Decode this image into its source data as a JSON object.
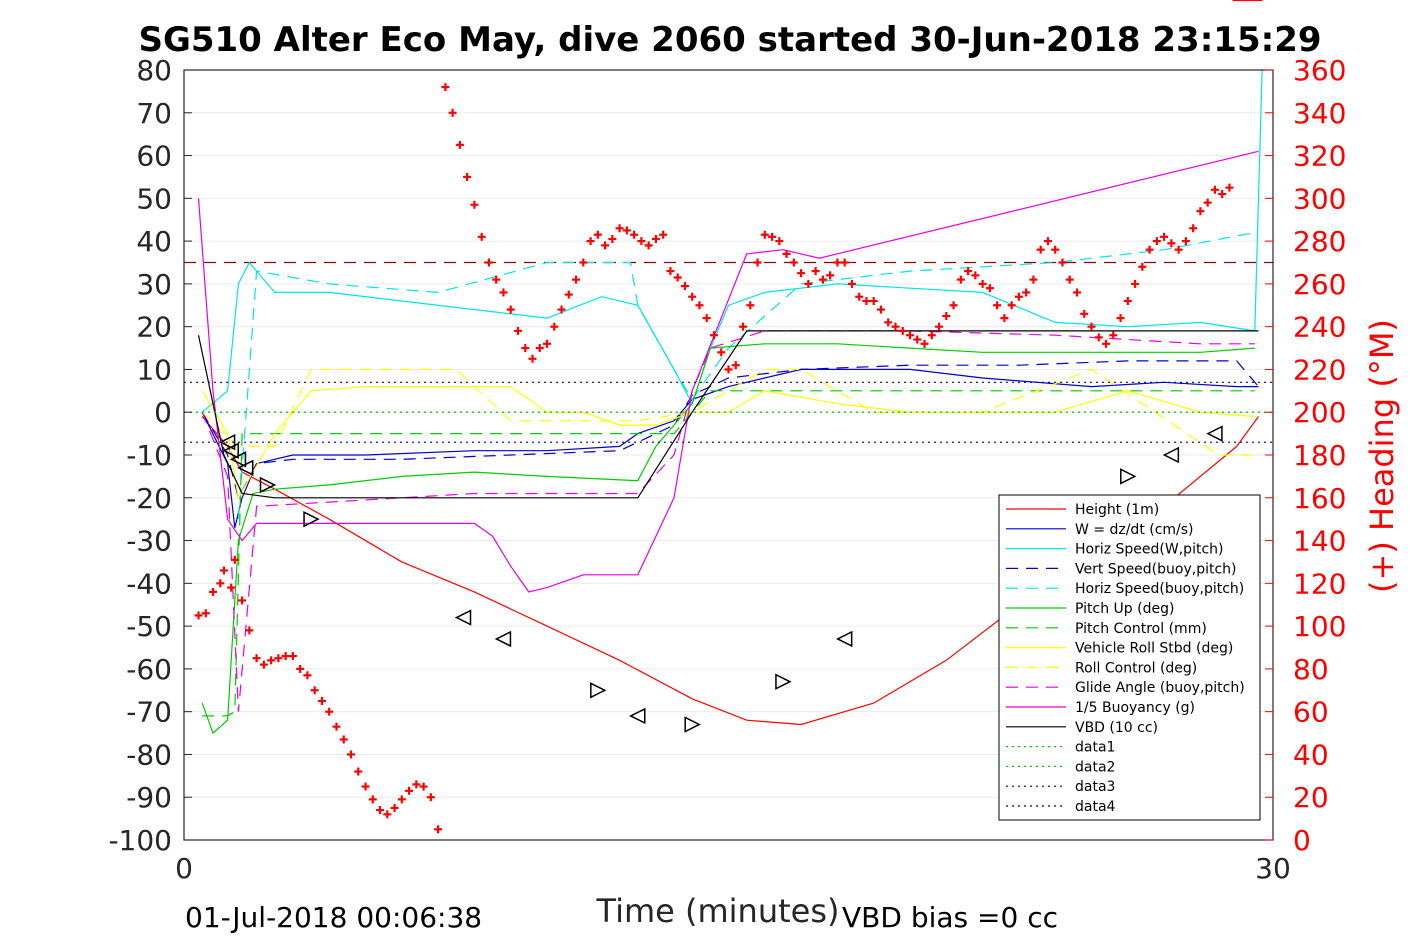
{
  "chart_data": {
    "type": "line",
    "title": "SG510 Alter Eco May, dive 2060 started 30-Jun-2018 23:15:29",
    "xlabel": "Time (minutes)",
    "ylabel": "",
    "y2label": "(+) Heading (°M)",
    "xlim": [
      0,
      30
    ],
    "ylim": [
      -100,
      80
    ],
    "y2lim": [
      0,
      360
    ],
    "xticks": [
      "0",
      "30"
    ],
    "yticks": [
      "80",
      "70",
      "60",
      "50",
      "40",
      "30",
      "20",
      "10",
      "0",
      "-10",
      "-20",
      "-30",
      "-40",
      "-50",
      "-60",
      "-70",
      "-80",
      "-90",
      "-100"
    ],
    "y2ticks": [
      "360",
      "340",
      "320",
      "300",
      "280",
      "260",
      "240",
      "220",
      "200",
      "180",
      "160",
      "140",
      "120",
      "100",
      "80",
      "60",
      "40",
      "20",
      "0"
    ],
    "footer_left": "01-Jul-2018 00:06:38",
    "footer_right": "VBD bias =0 cc",
    "grid": "horizontal",
    "legend_position": "bottom-right",
    "series": [
      {
        "name": "Height (1m)",
        "color": "#ff0000",
        "style": "solid",
        "x": [
          0.5,
          1.2,
          1.6,
          2.5,
          4,
          6,
          8,
          10,
          12,
          14,
          15.5,
          17,
          19,
          21,
          23,
          25,
          27,
          29,
          29.6
        ],
        "y": [
          -1,
          -8,
          -14,
          -18,
          -25,
          -35,
          -42,
          -50,
          -58,
          -67,
          -72,
          -73,
          -68,
          -58,
          -45,
          -35,
          -22,
          -8,
          -1
        ]
      },
      {
        "name": "W = dz/dt (cm/s)",
        "color": "#0000cd",
        "style": "solid",
        "x": [
          0.5,
          1.2,
          1.4,
          1.6,
          2,
          3,
          5,
          8,
          10,
          12,
          12.5,
          13.5,
          14,
          15,
          17,
          20,
          22,
          25,
          27,
          29,
          29.6
        ],
        "y": [
          0,
          -12,
          -27,
          -20,
          -12,
          -10,
          -10,
          -9,
          -9,
          -8,
          -5,
          -2,
          3,
          6,
          10,
          10,
          8,
          6,
          7,
          6,
          6
        ]
      },
      {
        "name": "Horiz Speed(W,pitch)",
        "color": "#00e5e5",
        "style": "solid",
        "x": [
          0.5,
          1.2,
          1.5,
          1.8,
          2.5,
          4,
          6,
          8,
          10,
          11.5,
          12.5,
          13.5,
          14,
          14.5,
          15,
          16,
          18,
          20,
          22,
          24,
          26,
          28,
          29.5,
          29.7
        ],
        "y": [
          0,
          5,
          30,
          35,
          28,
          28,
          26,
          24,
          22,
          27,
          25,
          10,
          2,
          15,
          25,
          28,
          30,
          29,
          28,
          21,
          20,
          21,
          19,
          80
        ]
      },
      {
        "name": "Vert Speed(buoy,pitch)",
        "color": "#0000cd",
        "style": "dashed",
        "x": [
          0.5,
          1.2,
          1.5,
          2,
          3,
          6,
          9,
          12,
          12.5,
          13.5,
          14,
          15,
          17,
          20,
          23,
          26,
          29,
          29.6
        ],
        "y": [
          0,
          -10,
          -20,
          -12,
          -11,
          -11,
          -10,
          -9,
          -7,
          -3,
          4,
          8,
          10,
          11,
          11,
          12,
          12,
          6
        ]
      },
      {
        "name": "Horiz Speed(buoy,pitch)",
        "color": "#00e5e5",
        "style": "dashed",
        "x": [
          1.5,
          2,
          4,
          7,
          10,
          12.3,
          12.5,
          13.5,
          14,
          15,
          17,
          20,
          24,
          27,
          29.5
        ],
        "y": [
          -25,
          33,
          30,
          28,
          35,
          35,
          25,
          10,
          3,
          15,
          30,
          33,
          35,
          38,
          42
        ]
      },
      {
        "name": "Pitch Up (deg)",
        "color": "#00cc00",
        "style": "solid",
        "x": [
          0.5,
          0.8,
          1.2,
          1.5,
          1.9,
          2.5,
          4,
          6,
          8,
          10,
          12.5,
          13,
          13.5,
          14,
          14.5,
          16,
          18,
          20,
          22,
          25,
          28,
          29.5
        ],
        "y": [
          -68,
          -75,
          -72,
          -30,
          -19,
          -18,
          -17,
          -15,
          -14,
          -15,
          -16,
          -8,
          -3,
          2,
          15,
          16,
          16,
          15,
          14,
          14,
          14,
          15
        ]
      },
      {
        "name": "Pitch Control (mm)",
        "color": "#00cc00",
        "style": "dashed",
        "x": [
          0.5,
          1.2,
          1.4,
          1.6,
          2,
          8,
          12.5,
          13.5,
          14,
          14.5,
          16,
          29.5
        ],
        "y": [
          -71,
          -71,
          -70,
          -5,
          -5,
          -5,
          -5,
          -5,
          0,
          5,
          5,
          5
        ]
      },
      {
        "name": "Vehicle Roll Stbd (deg)",
        "color": "#ffff00",
        "style": "solid",
        "x": [
          0.5,
          1.2,
          1.5,
          2.5,
          3.5,
          5,
          7,
          9,
          10,
          11,
          12,
          13,
          14,
          15,
          16,
          18,
          20,
          22,
          24,
          26,
          28,
          29.5
        ],
        "y": [
          5,
          -5,
          -20,
          -5,
          5,
          6,
          6,
          6,
          0,
          0,
          -3,
          -3,
          0,
          0,
          5,
          2,
          0,
          0,
          0,
          5,
          0,
          -1
        ]
      },
      {
        "name": "Roll Control (deg)",
        "color": "#ffff00",
        "style": "dashed",
        "x": [
          0.5,
          1.5,
          2.5,
          3.5,
          7.5,
          9,
          11,
          12.5,
          14,
          16,
          17,
          19,
          22,
          25,
          28.5,
          29.5
        ],
        "y": [
          0,
          -8,
          -8,
          10,
          10,
          -2,
          -2,
          -2,
          0,
          10,
          10,
          0,
          0,
          10,
          -10,
          -10
        ]
      },
      {
        "name": "Glide Angle (buoy,pitch)",
        "color": "#e500e5",
        "style": "dashed",
        "x": [
          0.5,
          1.2,
          1.5,
          2,
          4,
          6,
          8,
          10,
          12.5,
          13.5,
          14,
          14.5,
          16,
          20,
          24,
          28,
          29.5
        ],
        "y": [
          0,
          -15,
          -70,
          -22,
          -21,
          -20,
          -19,
          -19,
          -19,
          -10,
          5,
          15,
          19,
          19,
          18,
          16,
          16
        ]
      },
      {
        "name": "1/5 Buoyancy (g)",
        "color": "#e500e5",
        "style": "solid",
        "x": [
          0.4,
          0.8,
          1.2,
          1.6,
          2,
          5,
          8,
          8.5,
          9,
          9.5,
          10,
          11,
          12.5,
          13.5,
          14,
          15.5,
          16.5,
          17.5,
          29.6
        ],
        "y": [
          50,
          5,
          -25,
          -30,
          -26,
          -26,
          -26,
          -29,
          -36,
          -42,
          -41,
          -38,
          -38,
          -20,
          5,
          37,
          38,
          36,
          61
        ]
      },
      {
        "name": "VBD (10 cc)",
        "color": "#000000",
        "style": "solid",
        "x": [
          0.4,
          1.1,
          1.6,
          2.5,
          12.5,
          14,
          15.5,
          29.6
        ],
        "y": [
          18,
          -10,
          -19,
          -20,
          -20,
          0,
          19,
          19
        ]
      },
      {
        "name": "data1",
        "color": "#00cc00",
        "style": "dotted",
        "x": [
          0,
          30
        ],
        "y": [
          0,
          0
        ]
      },
      {
        "name": "data2",
        "color": "#00cc00",
        "style": "dotted",
        "x": [
          0,
          30
        ],
        "y": [
          0,
          0
        ]
      },
      {
        "name": "data3",
        "color": "#000080",
        "style": "dotted",
        "x": [
          0,
          30
        ],
        "y": [
          7,
          7
        ]
      },
      {
        "name": "data4",
        "color": "#000080",
        "style": "dotted",
        "x": [
          0,
          30
        ],
        "y": [
          -7,
          -7
        ]
      }
    ],
    "heading_reference": {
      "y2": 270,
      "color": "#8b0000",
      "style": "dashed"
    },
    "heading_points": {
      "color": "#ff0000",
      "x": [
        0.4,
        0.6,
        0.8,
        1.0,
        1.1,
        1.3,
        1.4,
        1.6,
        1.8,
        2.0,
        2.2,
        2.4,
        2.6,
        2.8,
        3.0,
        3.2,
        3.4,
        3.6,
        3.8,
        4.0,
        4.2,
        4.4,
        4.6,
        4.8,
        5.0,
        5.2,
        5.4,
        5.6,
        5.8,
        6.0,
        6.2,
        6.4,
        6.6,
        6.8,
        7.0,
        7.2,
        7.4,
        7.6,
        7.8,
        8.0,
        8.2,
        8.4,
        8.6,
        8.8,
        9.0,
        9.2,
        9.4,
        9.6,
        9.8,
        10.0,
        10.2,
        10.4,
        10.6,
        10.8,
        11.0,
        11.2,
        11.4,
        11.6,
        11.8,
        12.0,
        12.2,
        12.4,
        12.6,
        12.8,
        13.0,
        13.2,
        13.4,
        13.6,
        13.8,
        14.0,
        14.2,
        14.4,
        14.6,
        14.8,
        15.0,
        15.2,
        15.4,
        15.6,
        15.8,
        16.0,
        16.2,
        16.4,
        16.6,
        16.8,
        17.0,
        17.2,
        17.4,
        17.6,
        17.8,
        18.0,
        18.2,
        18.4,
        18.6,
        18.8,
        19.0,
        19.2,
        19.4,
        19.6,
        19.8,
        20.0,
        20.2,
        20.4,
        20.6,
        20.8,
        21.0,
        21.2,
        21.4,
        21.6,
        21.8,
        22.0,
        22.2,
        22.4,
        22.6,
        22.8,
        23.0,
        23.2,
        23.4,
        23.6,
        23.8,
        24.0,
        24.2,
        24.4,
        24.6,
        24.8,
        25.0,
        25.2,
        25.4,
        25.6,
        25.8,
        26.0,
        26.2,
        26.4,
        26.6,
        26.8,
        27.0,
        27.2,
        27.4,
        27.6,
        27.8,
        28.0,
        28.2,
        28.4,
        28.6,
        28.8,
        29.0,
        29.2,
        29.4,
        29.6
      ],
      "y2": [
        105,
        106,
        116,
        120,
        126,
        118,
        131,
        112,
        98,
        85,
        82,
        84,
        85,
        86,
        86,
        80,
        77,
        70,
        65,
        60,
        53,
        47,
        40,
        32,
        25,
        19,
        14,
        12,
        15,
        19,
        23,
        26,
        25,
        20,
        5,
        352,
        340,
        325,
        310,
        297,
        282,
        270,
        262,
        256,
        248,
        238,
        230,
        225,
        230,
        232,
        240,
        248,
        255,
        262,
        270,
        280,
        283,
        278,
        281,
        286,
        285,
        283,
        280,
        278,
        281,
        283,
        266,
        263,
        259,
        254,
        250,
        244,
        236,
        228,
        220,
        222,
        240,
        250,
        270,
        283,
        282,
        280,
        274,
        270,
        265,
        260,
        266,
        262,
        264,
        270,
        270,
        260,
        254,
        252,
        252,
        248,
        242,
        240,
        238,
        236,
        234,
        232,
        236,
        240,
        245,
        250,
        262,
        266,
        264,
        260,
        258,
        250,
        244,
        250,
        254,
        256,
        262,
        276,
        280,
        276,
        270,
        262,
        256,
        246,
        240,
        235,
        232,
        236,
        244,
        252,
        260,
        268,
        276,
        280,
        282,
        279,
        276,
        280,
        286,
        294,
        298,
        304,
        302,
        305
      ],
      "extra_marker_note": "heading points above mapped to right axis"
    },
    "triangle_markers": {
      "color": "#000000",
      "points": [
        {
          "x": 1.2,
          "y": -7,
          "dir": "left"
        },
        {
          "x": 1.3,
          "y": -9,
          "dir": "left"
        },
        {
          "x": 1.5,
          "y": -11,
          "dir": "left"
        },
        {
          "x": 1.7,
          "y": -13,
          "dir": "left"
        },
        {
          "x": 2.3,
          "y": -17,
          "dir": "right"
        },
        {
          "x": 3.5,
          "y": -25,
          "dir": "right"
        },
        {
          "x": 7.7,
          "y": -48,
          "dir": "left"
        },
        {
          "x": 8.8,
          "y": -53,
          "dir": "left"
        },
        {
          "x": 11.4,
          "y": -65,
          "dir": "right"
        },
        {
          "x": 12.5,
          "y": -71,
          "dir": "left"
        },
        {
          "x": 14.0,
          "y": -73,
          "dir": "right"
        },
        {
          "x": 16.5,
          "y": -63,
          "dir": "right"
        },
        {
          "x": 18.2,
          "y": -53,
          "dir": "left"
        },
        {
          "x": 26.0,
          "y": -15,
          "dir": "right"
        },
        {
          "x": 27.2,
          "y": -10,
          "dir": "left"
        },
        {
          "x": 28.4,
          "y": -5,
          "dir": "left"
        }
      ]
    }
  }
}
